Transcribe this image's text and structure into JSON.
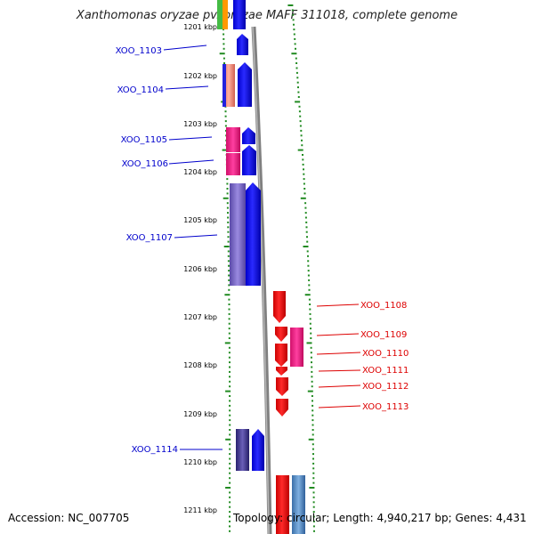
{
  "title": "Xanthomonas oryzae pv. oryzae MAFF 311018, complete genome",
  "footer": {
    "accession": "Accession: NC_007705",
    "topology": "Topology: circular; Length: 4,940,217 bp; Genes: 4,431"
  },
  "colors": {
    "forward": "#0000ee",
    "reverse": "#ee0000",
    "left_label": "#0000cc",
    "right_label": "#dd0000",
    "tick": "#228b22",
    "axis": "#808080"
  },
  "kbp_labels": [
    "1201 kbp",
    "1202 kbp",
    "1203 kbp",
    "1204 kbp",
    "1205 kbp",
    "1206 kbp",
    "1207 kbp",
    "1208 kbp",
    "1209 kbp",
    "1210 kbp",
    "1211 kbp"
  ],
  "genes_left": [
    "XOO_1103",
    "XOO_1104",
    "XOO_1105",
    "XOO_1106",
    "XOO_1107",
    "XOO_1114"
  ],
  "genes_right": [
    "XOO_1108",
    "XOO_1109",
    "XOO_1110",
    "XOO_1111",
    "XOO_1112",
    "XOO_1113"
  ]
}
